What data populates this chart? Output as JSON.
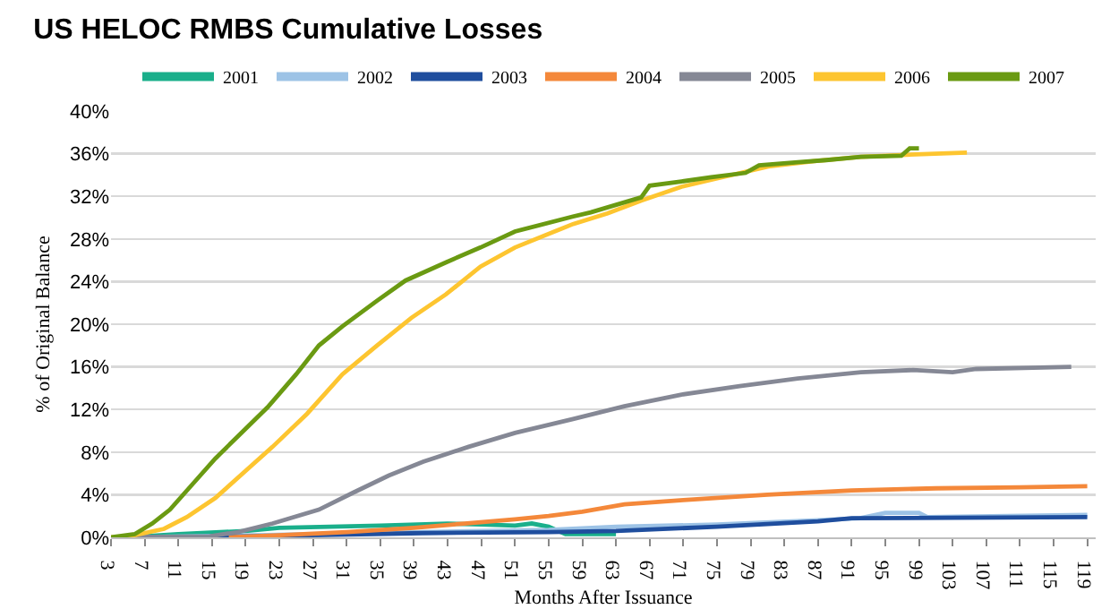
{
  "chart_data": {
    "type": "line",
    "title": "US HELOC RMBS Cumulative Losses",
    "xlabel": "Months After Issuance",
    "ylabel": "% of Original Balance",
    "xlim": [
      3,
      120
    ],
    "xticks": [
      3,
      7,
      11,
      15,
      19,
      23,
      27,
      31,
      35,
      39,
      43,
      47,
      51,
      55,
      59,
      63,
      67,
      71,
      75,
      79,
      83,
      87,
      91,
      95,
      99,
      103,
      107,
      111,
      115,
      119
    ],
    "ylim": [
      0,
      40
    ],
    "yticks": [
      {
        "value": 0,
        "label": "0%"
      },
      {
        "value": 4,
        "label": "4%"
      },
      {
        "value": 8,
        "label": "8%"
      },
      {
        "value": 12,
        "label": "12%"
      },
      {
        "value": 16,
        "label": "16%"
      },
      {
        "value": 20,
        "label": "20%"
      },
      {
        "value": 24,
        "label": "24%"
      },
      {
        "value": 28,
        "label": "28%"
      },
      {
        "value": 32,
        "label": "32%"
      },
      {
        "value": 36,
        "label": "36%"
      },
      {
        "value": 40,
        "label": "40%"
      }
    ],
    "grid": "y",
    "legend": "top",
    "marker": "none",
    "line_style": "solid",
    "series": [
      {
        "name": "2001",
        "color": "#1aaf8b",
        "x": [
          5,
          11,
          19,
          23,
          35,
          43,
          47,
          51,
          53,
          55,
          57,
          63
        ],
        "values": [
          0,
          0.3,
          0.6,
          0.9,
          1.1,
          1.3,
          1.2,
          1.1,
          1.3,
          1.0,
          0.3,
          0.3
        ]
      },
      {
        "name": "2002",
        "color": "#9dc3e6",
        "x": [
          5,
          20,
          40,
          55,
          63,
          75,
          87,
          92,
          95,
          99,
          100,
          119
        ],
        "values": [
          0,
          0.2,
          0.5,
          0.7,
          1.0,
          1.2,
          1.6,
          1.8,
          2.3,
          2.3,
          1.9,
          2.1
        ]
      },
      {
        "name": "2003",
        "color": "#1f4e9e",
        "x": [
          5,
          20,
          40,
          55,
          63,
          75,
          87,
          91,
          119
        ],
        "values": [
          0,
          0.1,
          0.4,
          0.5,
          0.6,
          1.0,
          1.5,
          1.8,
          1.9
        ]
      },
      {
        "name": "2004",
        "color": "#f4883a",
        "x": [
          17,
          23,
          31,
          39,
          45,
          51,
          55,
          59,
          64,
          71,
          81,
          91,
          101,
          111,
          119
        ],
        "values": [
          0,
          0.2,
          0.5,
          0.9,
          1.3,
          1.7,
          2.0,
          2.4,
          3.1,
          3.5,
          4.0,
          4.4,
          4.6,
          4.7,
          4.8
        ]
      },
      {
        "name": "2005",
        "color": "#858895",
        "x": [
          5,
          14.7,
          18.1,
          22.2,
          27.7,
          31.8,
          36,
          40.1,
          45.5,
          51,
          57.9,
          64,
          70.8,
          77.7,
          84.6,
          92.1,
          98.3,
          103,
          105.8,
          117.1
        ],
        "values": [
          0,
          0.1,
          0.5,
          1.3,
          2.6,
          4.2,
          5.8,
          7.1,
          8.5,
          9.8,
          11.1,
          12.3,
          13.4,
          14.2,
          14.9,
          15.5,
          15.7,
          15.5,
          15.8,
          16.0
        ]
      },
      {
        "name": "2006",
        "color": "#fdc530",
        "x": [
          3,
          5.2,
          9.3,
          12,
          15.4,
          19.5,
          22.2,
          26.3,
          30.5,
          34.6,
          38.7,
          42.8,
          46.9,
          51,
          57.9,
          62,
          66,
          70.8,
          75.7,
          81.1,
          86.6,
          92.1,
          97.5,
          104.7
        ],
        "values": [
          0,
          0.1,
          0.8,
          1.9,
          3.7,
          6.6,
          8.5,
          11.6,
          15.3,
          18.0,
          20.6,
          22.8,
          25.4,
          27.2,
          29.4,
          30.4,
          31.6,
          32.9,
          33.8,
          34.8,
          35.3,
          35.7,
          35.9,
          36.1
        ]
      },
      {
        "name": "2007",
        "color": "#6a9a12",
        "x": [
          3,
          5.8,
          7.9,
          10,
          12.7,
          15.4,
          18.1,
          21.6,
          25,
          27.7,
          30.5,
          34.6,
          38,
          42.8,
          46.9,
          51,
          57.9,
          60,
          66,
          67,
          70.8,
          74.3,
          78.4,
          80,
          84.6,
          88,
          92.1,
          96.9,
          97.9,
          99
        ],
        "values": [
          0,
          0.3,
          1.3,
          2.6,
          5.0,
          7.4,
          9.5,
          12.2,
          15.3,
          18.0,
          19.8,
          22.2,
          24.1,
          25.8,
          27.2,
          28.7,
          30.1,
          30.5,
          31.9,
          33.0,
          33.4,
          33.8,
          34.2,
          34.9,
          35.2,
          35.4,
          35.7,
          35.8,
          36.5,
          36.5
        ]
      }
    ]
  }
}
